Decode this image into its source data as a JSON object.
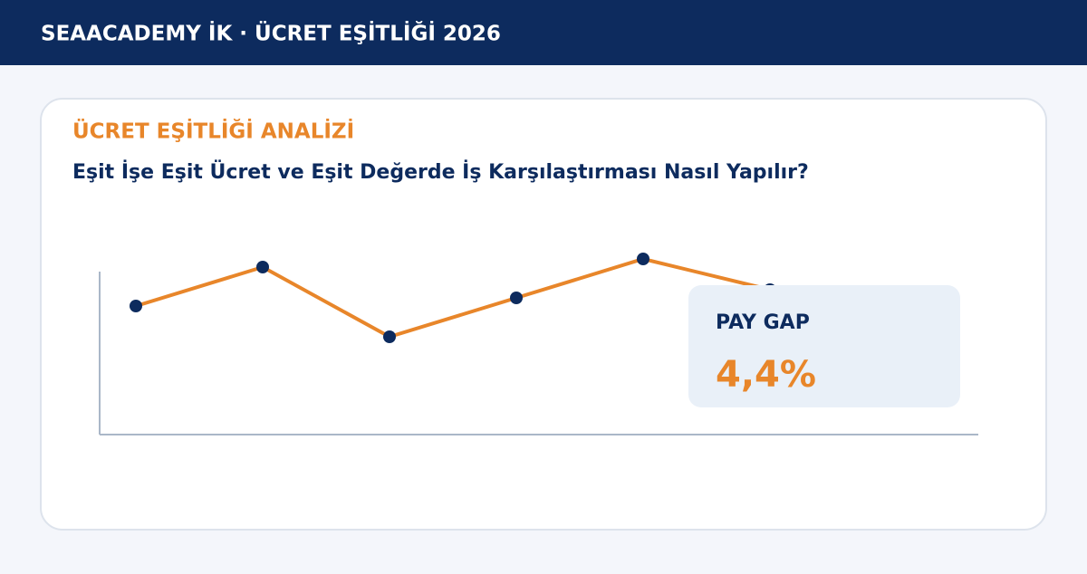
{
  "header": {
    "title": "SEAACADEMY İK · ÜCRET EŞİTLİĞİ 2026"
  },
  "card": {
    "eyebrow": "ÜCRET EŞİTLİĞİ ANALİZİ",
    "title": "Eşit İşe Eşit Ücret ve Eşit Değerde İş Karşılaştırması Nasıl Yapılır?"
  },
  "chart_data": {
    "type": "line",
    "categories": [
      null,
      null,
      null,
      null,
      null,
      null
    ],
    "series": [
      {
        "color": "#e8862a",
        "marker_color": "#0d2b5e",
        "values": [
          71,
          92.5,
          54,
          75.5,
          97,
          80
        ]
      }
    ],
    "ylim": [
      0,
      100
    ]
  },
  "callout": {
    "label": "PAY GAP",
    "value": "4,4%"
  }
}
